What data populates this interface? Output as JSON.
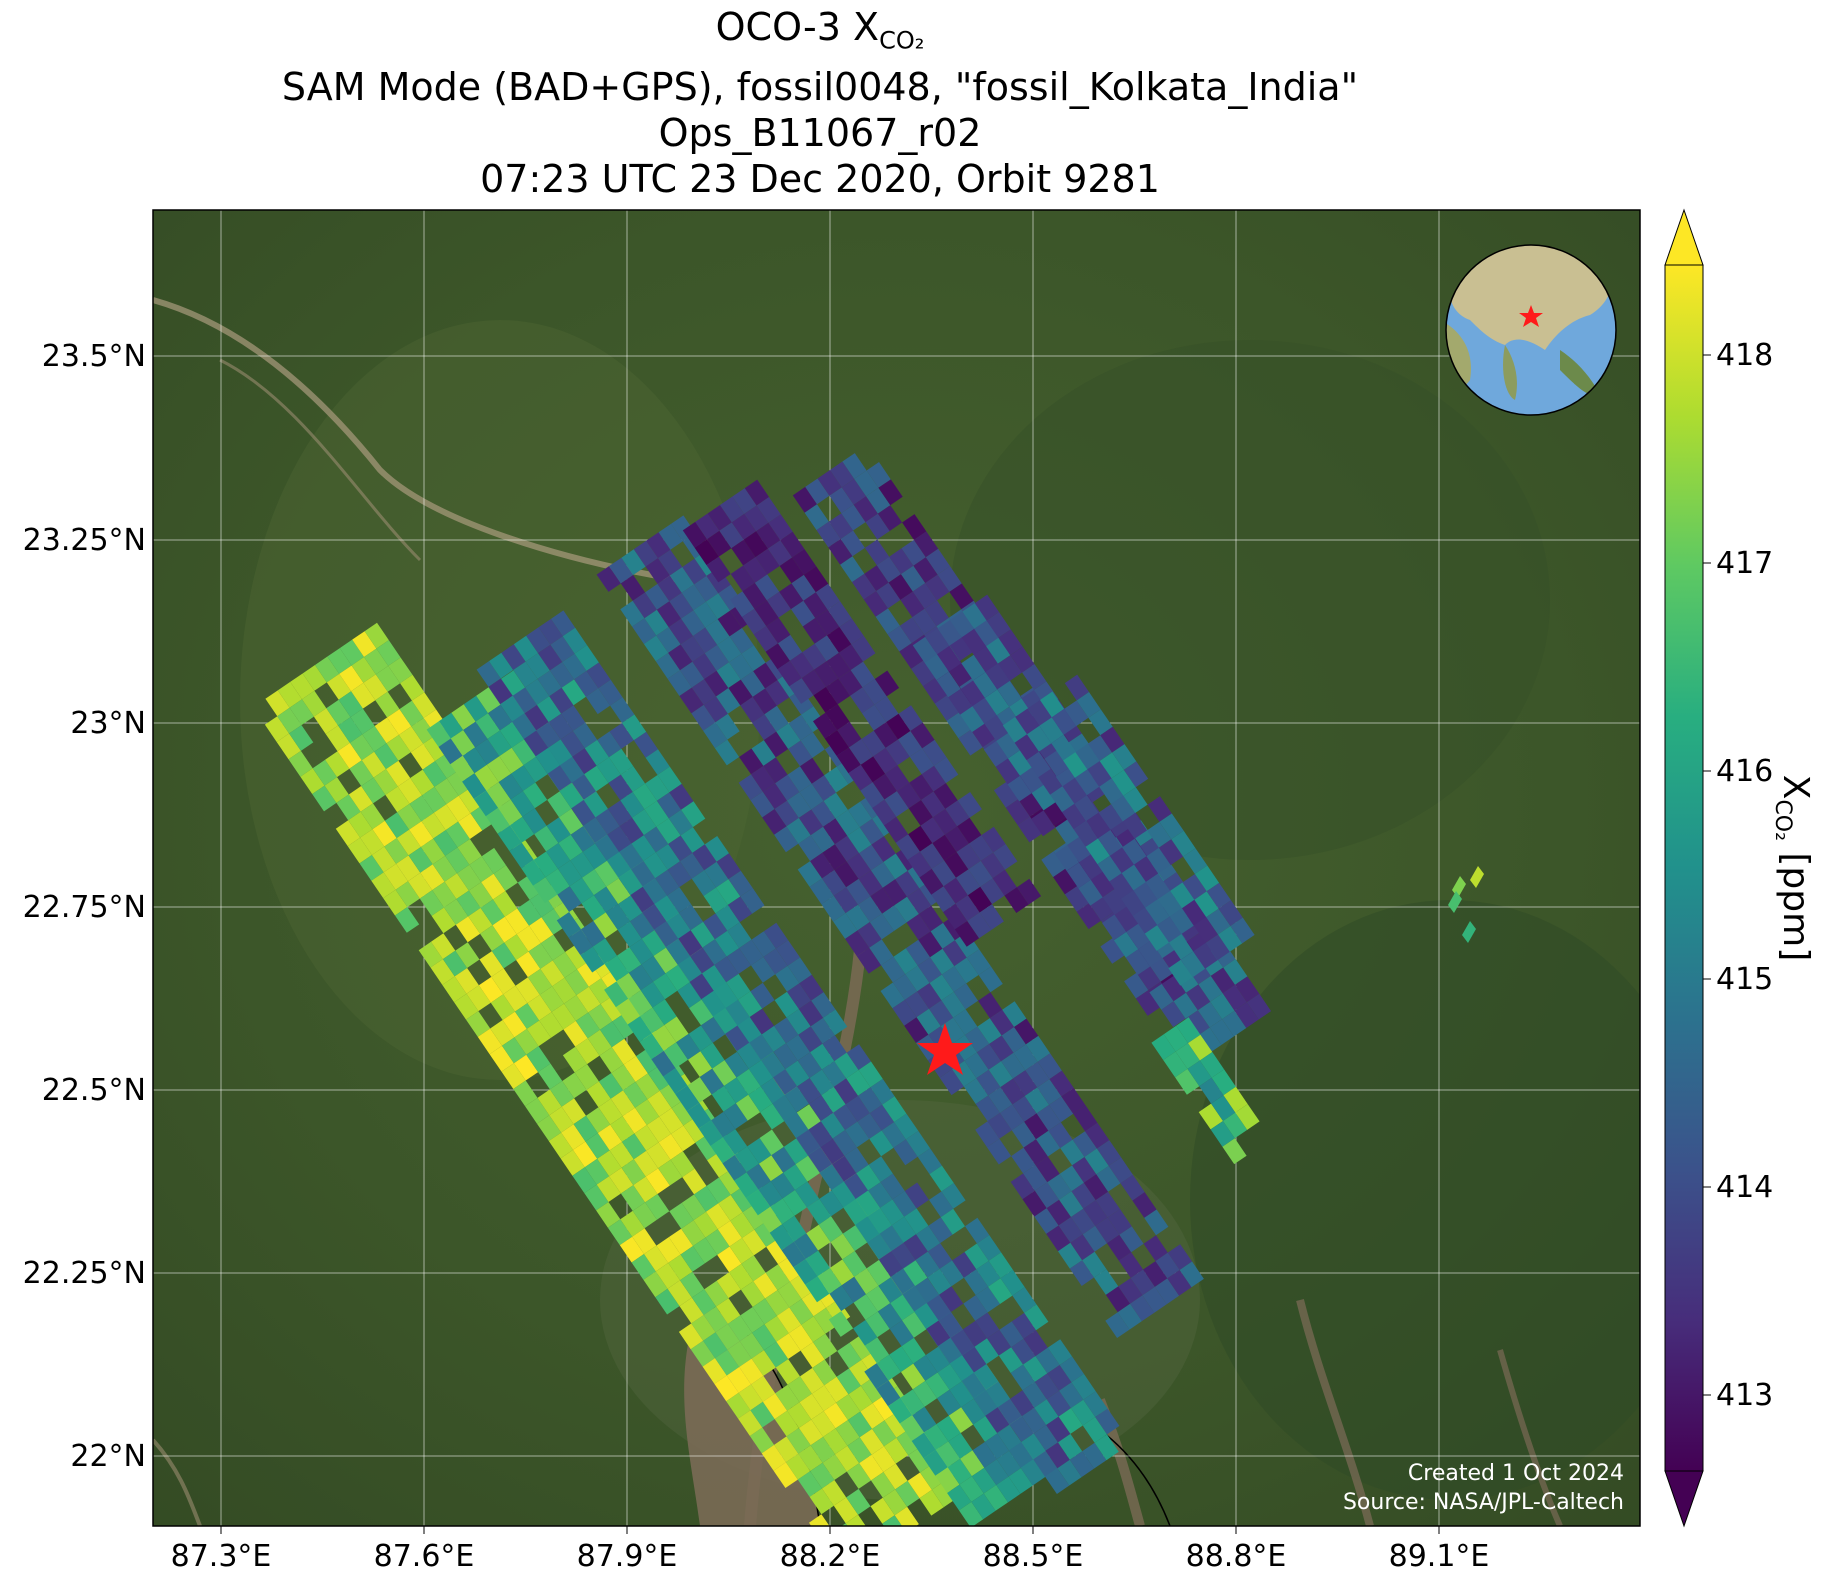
{
  "title": {
    "line1_prefix": "OCO-3 X",
    "line1_sub": "CO₂",
    "line2": "SAM Mode (BAD+GPS), fossil0048, \"fossil_Kolkata_India\"",
    "line3": "Ops_B11067_r02",
    "line4": "07:23 UTC 23 Dec 2020, Orbit 9281"
  },
  "map": {
    "lon_ticks": [
      "87.3°E",
      "87.6°E",
      "87.9°E",
      "88.2°E",
      "88.5°E",
      "88.8°E",
      "89.1°E"
    ],
    "lat_ticks": [
      "23.5°N",
      "23.25°N",
      "23°N",
      "22.75°N",
      "22.5°N",
      "22.25°N",
      "22°N"
    ],
    "target_marker": "red-star",
    "inset": "globe-locator",
    "credit_line1": "Created 1 Oct 2024",
    "credit_line2": "Source: NASA/JPL-Caltech"
  },
  "colorbar": {
    "label_prefix": "X",
    "label_sub": "CO₂",
    "label_suffix": " [ppm]",
    "ticks": [
      "413",
      "414",
      "415",
      "416",
      "417",
      "418"
    ],
    "min": 412.6,
    "max": 418.4,
    "colormap": "viridis",
    "extend": "both"
  },
  "colors": {
    "land": "#3f5a2c",
    "river": "#7a6a55",
    "target": "#ff1a1a",
    "ocean": "#6fa8dc"
  }
}
